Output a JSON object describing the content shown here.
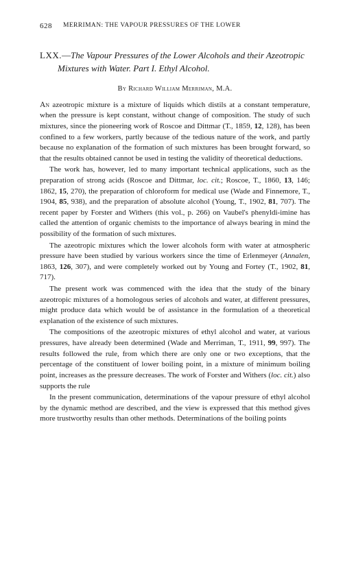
{
  "page_number": "628",
  "running_head": "MERRIMAN: THE VAPOUR PRESSURES OF THE LOWER",
  "title": {
    "number": "LXX.",
    "dash": "—",
    "text": "The Vapour Pressures of the Lower Alcohols and their Azeotropic Mixtures with Water. Part I. Ethyl Alcohol."
  },
  "author_line": "By Richard William Merriman, M.A.",
  "paragraphs": [
    "An azeotropic mixture is a mixture of liquids which distils at a constant temperature, when the pressure is kept constant, without change of composition. The study of such mixtures, since the pioneering work of Roscoe and Dittmar (T., 1859, 12, 128), has been confined to a few workers, partly because of the tedious nature of the work, and partly because no explanation of the formation of such mixtures has been brought forward, so that the results obtained cannot be used in testing the validity of theoretical deductions.",
    "The work has, however, led to many important technical applications, such as the preparation of strong acids (Roscoe and Dittmar, loc. cit.; Roscoe, T., 1860, 13, 146; 1862, 15, 270), the preparation of chloroform for medical use (Wade and Finnemore, T., 1904, 85, 938), and the preparation of absolute alcohol (Young, T., 1902, 81, 707). The recent paper by Forster and Withers (this vol., p. 266) on Vaubel's phenyldi-imine has called the attention of organic chemists to the importance of always bearing in mind the possibility of the formation of such mixtures.",
    "The azeotropic mixtures which the lower alcohols form with water at atmospheric pressure have been studied by various workers since the time of Erlenmeyer (Annalen, 1863, 126, 307), and were completely worked out by Young and Fortey (T., 1902, 81, 717).",
    "The present work was commenced with the idea that the study of the binary azeotropic mixtures of a homologous series of alcohols and water, at different pressures, might produce data which would be of assistance in the formulation of a theoretical explanation of the existence of such mixtures.",
    "The compositions of the azeotropic mixtures of ethyl alcohol and water, at various pressures, have already been determined (Wade and Merriman, T., 1911, 99, 997). The results followed the rule, from which there are only one or two exceptions, that the percentage of the constituent of lower boiling point, in a mixture of minimum boiling point, increases as the pressure decreases. The work of Forster and Withers (loc. cit.) also supports the rule",
    "In the present communication, determinations of the vapour pressure of ethyl alcohol by the dynamic method are described, and the view is expressed that this method gives more trustworthy results than other methods. Determinations of the boiling points"
  ]
}
